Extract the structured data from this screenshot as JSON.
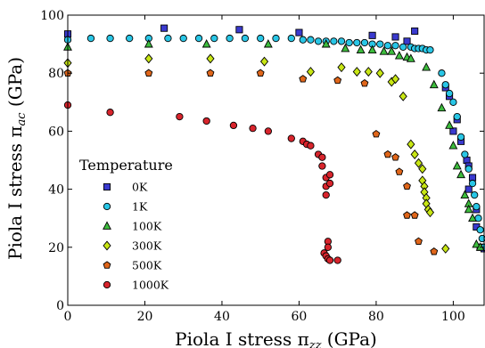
{
  "chart_data": {
    "type": "scatter",
    "xlabel": "Piola I stress π",
    "xlabel_sub": "zz",
    "xlabel_unit": " (GPa)",
    "ylabel": "Piola I stress π",
    "ylabel_sub": "ac",
    "ylabel_unit": " (GPa)",
    "xlim": [
      0,
      108
    ],
    "ylim": [
      0,
      100
    ],
    "xticks": [
      0,
      20,
      40,
      60,
      80,
      100
    ],
    "yticks": [
      0,
      20,
      40,
      60,
      80,
      100
    ],
    "grid": false,
    "legend": {
      "title": "Temperature",
      "placement": "lower-left"
    },
    "series": [
      {
        "name": "0K",
        "marker": "square",
        "color": "#3a3acf",
        "points": [
          [
            0,
            93.5
          ],
          [
            25,
            95.5
          ],
          [
            44.5,
            95
          ],
          [
            60,
            94
          ],
          [
            79,
            93
          ],
          [
            85,
            92.5
          ],
          [
            90,
            94.5
          ],
          [
            88,
            91
          ],
          [
            98,
            75
          ],
          [
            99,
            72
          ],
          [
            101,
            64
          ],
          [
            100,
            60
          ],
          [
            102,
            56.5
          ],
          [
            103.5,
            50
          ],
          [
            104,
            48
          ],
          [
            105,
            44
          ],
          [
            104,
            40
          ],
          [
            106,
            33
          ],
          [
            106,
            27
          ],
          [
            107,
            20
          ],
          [
            108,
            19.5
          ]
        ]
      },
      {
        "name": "1K",
        "marker": "circle",
        "color": "#29c6e6",
        "points": [
          [
            0,
            91.5
          ],
          [
            6,
            92
          ],
          [
            11,
            92
          ],
          [
            16,
            92
          ],
          [
            21,
            92
          ],
          [
            26,
            92
          ],
          [
            30,
            92
          ],
          [
            34,
            92
          ],
          [
            38,
            92
          ],
          [
            42,
            92
          ],
          [
            46,
            92
          ],
          [
            50,
            92
          ],
          [
            54,
            92
          ],
          [
            58,
            92
          ],
          [
            61,
            91.5
          ],
          [
            63,
            91.5
          ],
          [
            65,
            91
          ],
          [
            67,
            91
          ],
          [
            69,
            91
          ],
          [
            71,
            91
          ],
          [
            73,
            90.5
          ],
          [
            75,
            90.5
          ],
          [
            77,
            90.5
          ],
          [
            79,
            90
          ],
          [
            81,
            90
          ],
          [
            83,
            89.5
          ],
          [
            85,
            89.5
          ],
          [
            87,
            89
          ],
          [
            89,
            89
          ],
          [
            90,
            88.5
          ],
          [
            91,
            88.5
          ],
          [
            92,
            88.5
          ],
          [
            93,
            88
          ],
          [
            94,
            88
          ],
          [
            97,
            80
          ],
          [
            98,
            76
          ],
          [
            99,
            73
          ],
          [
            100,
            70
          ],
          [
            101,
            65
          ],
          [
            102,
            58
          ],
          [
            103,
            52
          ],
          [
            104,
            47
          ],
          [
            105,
            42
          ],
          [
            105.5,
            38
          ],
          [
            106,
            34
          ],
          [
            106.5,
            30
          ],
          [
            107,
            26
          ],
          [
            107.5,
            23
          ],
          [
            108,
            20
          ]
        ]
      },
      {
        "name": "100K",
        "marker": "triangle",
        "color": "#3dbd3d",
        "points": [
          [
            0,
            89
          ],
          [
            21,
            90
          ],
          [
            36,
            90
          ],
          [
            52,
            90
          ],
          [
            67,
            90
          ],
          [
            72,
            88.5
          ],
          [
            76,
            88
          ],
          [
            79,
            88
          ],
          [
            82,
            87.5
          ],
          [
            84,
            87.5
          ],
          [
            86,
            86
          ],
          [
            88,
            85.5
          ],
          [
            89,
            85
          ],
          [
            93,
            82
          ],
          [
            95,
            76
          ],
          [
            97,
            68
          ],
          [
            99,
            62
          ],
          [
            100,
            55
          ],
          [
            101,
            48
          ],
          [
            102,
            45
          ],
          [
            103,
            38
          ],
          [
            104,
            35
          ],
          [
            104,
            33
          ],
          [
            105,
            30
          ],
          [
            106,
            21
          ],
          [
            107,
            20
          ]
        ]
      },
      {
        "name": "300K",
        "marker": "diamond",
        "color": "#c8e614",
        "points": [
          [
            0,
            83.5
          ],
          [
            21,
            85
          ],
          [
            37,
            85
          ],
          [
            51,
            84
          ],
          [
            63,
            80.5
          ],
          [
            71,
            82
          ],
          [
            75,
            80.5
          ],
          [
            78,
            80.5
          ],
          [
            81,
            80
          ],
          [
            84,
            77
          ],
          [
            85,
            78
          ],
          [
            87,
            72
          ],
          [
            89,
            55.5
          ],
          [
            90,
            52
          ],
          [
            91,
            49
          ],
          [
            92,
            47
          ],
          [
            92,
            43
          ],
          [
            92.5,
            41
          ],
          [
            92.5,
            39
          ],
          [
            93,
            37
          ],
          [
            93,
            35
          ],
          [
            93.5,
            33
          ],
          [
            94,
            32
          ],
          [
            98,
            19.5
          ]
        ]
      },
      {
        "name": "500K",
        "marker": "pentagon",
        "color": "#e0661a",
        "points": [
          [
            0,
            80
          ],
          [
            21,
            80
          ],
          [
            37,
            80
          ],
          [
            50,
            80
          ],
          [
            61,
            78
          ],
          [
            70,
            77.5
          ],
          [
            77,
            76.5
          ],
          [
            80,
            59
          ],
          [
            83,
            52
          ],
          [
            85,
            51
          ],
          [
            86,
            46
          ],
          [
            88,
            41
          ],
          [
            88,
            31
          ],
          [
            90,
            31
          ],
          [
            91,
            22
          ],
          [
            95,
            18.5
          ]
        ]
      },
      {
        "name": "1000K",
        "marker": "circle",
        "color": "#d8242c",
        "points": [
          [
            0,
            69
          ],
          [
            11,
            66.5
          ],
          [
            29,
            65
          ],
          [
            36,
            63.5
          ],
          [
            43,
            62
          ],
          [
            48,
            61
          ],
          [
            52,
            60
          ],
          [
            58,
            57.5
          ],
          [
            61,
            56.5
          ],
          [
            62,
            55.5
          ],
          [
            63,
            55
          ],
          [
            65,
            52
          ],
          [
            66,
            51
          ],
          [
            66,
            48
          ],
          [
            67,
            44
          ],
          [
            67,
            41
          ],
          [
            68,
            45
          ],
          [
            68,
            42
          ],
          [
            67,
            38
          ],
          [
            67.5,
            22
          ],
          [
            67.5,
            20
          ],
          [
            66.5,
            18
          ],
          [
            67,
            17
          ],
          [
            67.5,
            16
          ],
          [
            68,
            15.5
          ],
          [
            70,
            15.5
          ]
        ]
      }
    ]
  }
}
